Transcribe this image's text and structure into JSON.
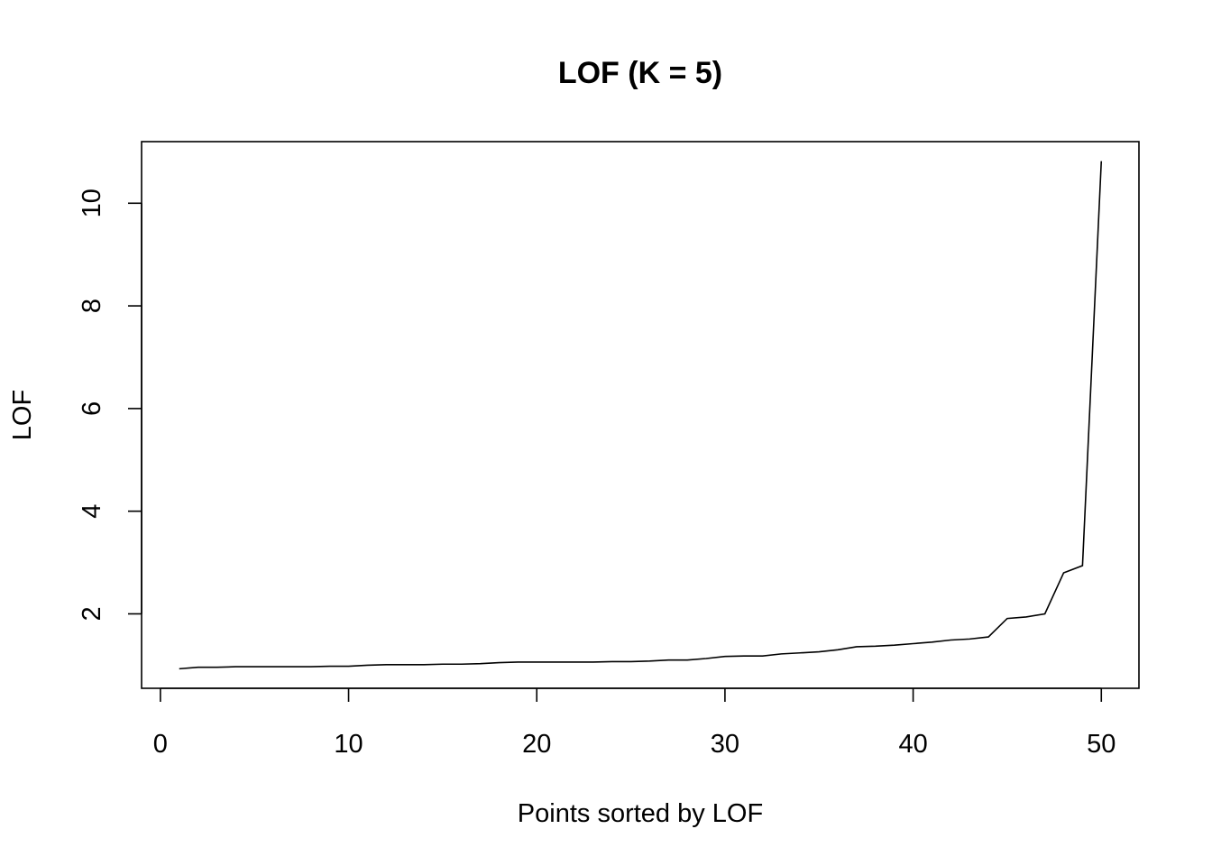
{
  "chart_data": {
    "type": "line",
    "title": "LOF (K = 5)",
    "xlabel": "Points sorted by LOF",
    "ylabel": "LOF",
    "xlim": [
      -1,
      52
    ],
    "ylim": [
      0.55,
      11.2
    ],
    "xticks": [
      0,
      10,
      20,
      30,
      40,
      50
    ],
    "yticks": [
      2,
      4,
      6,
      8,
      10
    ],
    "grid": false,
    "series": [
      {
        "color": "#000000",
        "x": [
          1,
          2,
          3,
          4,
          5,
          6,
          7,
          8,
          9,
          10,
          11,
          12,
          13,
          14,
          15,
          16,
          17,
          18,
          19,
          20,
          21,
          22,
          23,
          24,
          25,
          26,
          27,
          28,
          29,
          30,
          31,
          32,
          33,
          34,
          35,
          36,
          37,
          38,
          39,
          40,
          41,
          42,
          43,
          44,
          45,
          46,
          47,
          48,
          49,
          50
        ],
        "values": [
          0.93,
          0.96,
          0.96,
          0.97,
          0.97,
          0.97,
          0.97,
          0.97,
          0.98,
          0.98,
          1.0,
          1.01,
          1.01,
          1.01,
          1.02,
          1.02,
          1.03,
          1.05,
          1.06,
          1.06,
          1.06,
          1.06,
          1.06,
          1.07,
          1.07,
          1.08,
          1.1,
          1.1,
          1.13,
          1.17,
          1.18,
          1.18,
          1.22,
          1.24,
          1.26,
          1.3,
          1.36,
          1.37,
          1.39,
          1.42,
          1.45,
          1.49,
          1.51,
          1.55,
          1.91,
          1.94,
          2.0,
          2.8,
          2.94,
          10.82
        ]
      }
    ]
  }
}
